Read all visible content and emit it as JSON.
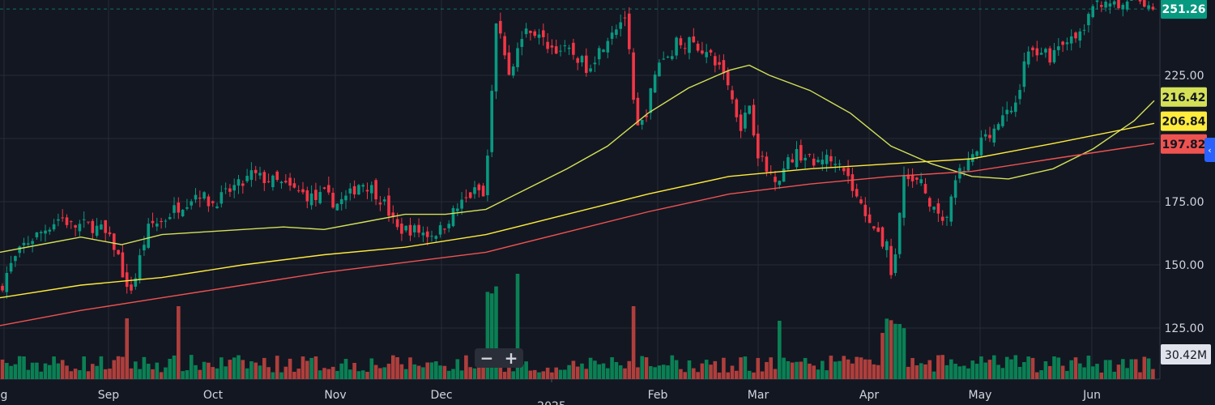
{
  "chart_data": {
    "type": "candlestick",
    "y_axis": {
      "ticks": [
        125,
        150,
        175,
        200,
        225
      ],
      "tick_labels": [
        "125.00",
        "150.00",
        "175.00",
        "",
        "225.00"
      ],
      "ylim": [
        114,
        254
      ]
    },
    "x_axis": {
      "labels": [
        "g",
        "Sep",
        "Oct",
        "Nov",
        "Dec",
        "Feb",
        "Mar",
        "Apr",
        "May",
        "Jun"
      ],
      "partial_label": "2025"
    },
    "price_path": [
      [
        0,
        140
      ],
      [
        10,
        148
      ],
      [
        30,
        158
      ],
      [
        55,
        164
      ],
      [
        75,
        169
      ],
      [
        90,
        165
      ],
      [
        105,
        166
      ],
      [
        125,
        164
      ],
      [
        140,
        158
      ],
      [
        150,
        150
      ],
      [
        155,
        139
      ],
      [
        165,
        142
      ],
      [
        175,
        156
      ],
      [
        185,
        166
      ],
      [
        200,
        167
      ],
      [
        215,
        172
      ],
      [
        230,
        175
      ],
      [
        245,
        179
      ],
      [
        260,
        174
      ],
      [
        275,
        177
      ],
      [
        290,
        181
      ],
      [
        300,
        182
      ],
      [
        310,
        186
      ],
      [
        325,
        184
      ],
      [
        340,
        183
      ],
      [
        360,
        180
      ],
      [
        375,
        178
      ],
      [
        390,
        176
      ],
      [
        400,
        178
      ],
      [
        415,
        174
      ],
      [
        430,
        177
      ],
      [
        445,
        183
      ],
      [
        460,
        180
      ],
      [
        475,
        174
      ],
      [
        490,
        164
      ],
      [
        510,
        164
      ],
      [
        530,
        162
      ],
      [
        545,
        164
      ],
      [
        560,
        171
      ],
      [
        575,
        176
      ],
      [
        590,
        180
      ],
      [
        598,
        176
      ],
      [
        603,
        198
      ],
      [
        608,
        220
      ],
      [
        613,
        248
      ],
      [
        620,
        240
      ],
      [
        630,
        222
      ],
      [
        640,
        238
      ],
      [
        655,
        244
      ],
      [
        665,
        240
      ],
      [
        680,
        236
      ],
      [
        695,
        235
      ],
      [
        710,
        233
      ],
      [
        725,
        228
      ],
      [
        740,
        235
      ],
      [
        755,
        243
      ],
      [
        765,
        246
      ],
      [
        773,
        249
      ],
      [
        778,
        228
      ],
      [
        785,
        203
      ],
      [
        795,
        207
      ],
      [
        805,
        220
      ],
      [
        815,
        232
      ],
      [
        825,
        232
      ],
      [
        835,
        238
      ],
      [
        850,
        238
      ],
      [
        865,
        236
      ],
      [
        880,
        231
      ],
      [
        895,
        226
      ],
      [
        905,
        214
      ],
      [
        915,
        205
      ],
      [
        925,
        214
      ],
      [
        935,
        195
      ],
      [
        945,
        188
      ],
      [
        955,
        185
      ],
      [
        965,
        186
      ],
      [
        975,
        192
      ],
      [
        985,
        194
      ],
      [
        995,
        193
      ],
      [
        1005,
        189
      ],
      [
        1015,
        193
      ],
      [
        1025,
        191
      ],
      [
        1035,
        193
      ],
      [
        1045,
        186
      ],
      [
        1055,
        178
      ],
      [
        1065,
        172
      ],
      [
        1075,
        168
      ],
      [
        1085,
        160
      ],
      [
        1095,
        157
      ],
      [
        1100,
        147
      ],
      [
        1105,
        152
      ],
      [
        1110,
        171
      ],
      [
        1115,
        186
      ],
      [
        1125,
        182
      ],
      [
        1135,
        183
      ],
      [
        1145,
        177
      ],
      [
        1155,
        170
      ],
      [
        1165,
        165
      ],
      [
        1175,
        178
      ],
      [
        1185,
        186
      ],
      [
        1195,
        190
      ],
      [
        1205,
        194
      ],
      [
        1215,
        202
      ],
      [
        1225,
        203
      ],
      [
        1235,
        207
      ],
      [
        1245,
        210
      ],
      [
        1255,
        214
      ],
      [
        1265,
        232
      ],
      [
        1275,
        234
      ],
      [
        1285,
        236
      ],
      [
        1295,
        232
      ],
      [
        1305,
        236
      ],
      [
        1315,
        240
      ],
      [
        1325,
        238
      ],
      [
        1335,
        242
      ],
      [
        1345,
        248
      ],
      [
        1355,
        254
      ],
      [
        1370,
        255
      ],
      [
        1380,
        250
      ],
      [
        1395,
        256
      ],
      [
        1410,
        254
      ],
      [
        1425,
        252
      ]
    ],
    "series": [
      {
        "name": "",
        "color": "#d4e157",
        "last": 216.42,
        "label": "216.42",
        "path": [
          [
            0,
            155
          ],
          [
            50,
            158
          ],
          [
            100,
            161
          ],
          [
            150,
            158
          ],
          [
            200,
            162
          ],
          [
            250,
            163
          ],
          [
            300,
            164
          ],
          [
            350,
            165
          ],
          [
            400,
            164
          ],
          [
            450,
            167
          ],
          [
            500,
            170
          ],
          [
            550,
            170
          ],
          [
            600,
            172
          ],
          [
            650,
            180
          ],
          [
            700,
            188
          ],
          [
            750,
            197
          ],
          [
            800,
            210
          ],
          [
            850,
            220
          ],
          [
            900,
            227
          ],
          [
            925,
            229
          ],
          [
            950,
            225
          ],
          [
            1000,
            219
          ],
          [
            1050,
            210
          ],
          [
            1100,
            197
          ],
          [
            1150,
            190
          ],
          [
            1200,
            185
          ],
          [
            1245,
            184
          ],
          [
            1300,
            188
          ],
          [
            1350,
            196
          ],
          [
            1400,
            207
          ],
          [
            1425,
            215
          ]
        ]
      },
      {
        "name": "",
        "color": "#ffeb3b",
        "last": 206.84,
        "label": "206.84",
        "path": [
          [
            0,
            137
          ],
          [
            100,
            142
          ],
          [
            200,
            145
          ],
          [
            300,
            150
          ],
          [
            400,
            154
          ],
          [
            500,
            157
          ],
          [
            600,
            162
          ],
          [
            700,
            170
          ],
          [
            800,
            178
          ],
          [
            900,
            185
          ],
          [
            1000,
            188
          ],
          [
            1100,
            190
          ],
          [
            1200,
            192
          ],
          [
            1300,
            198
          ],
          [
            1425,
            206
          ]
        ]
      },
      {
        "name": "",
        "color": "#ef5350",
        "last": 197.82,
        "label": "197.82",
        "path": [
          [
            0,
            126
          ],
          [
            100,
            132
          ],
          [
            200,
            137
          ],
          [
            300,
            142
          ],
          [
            400,
            147
          ],
          [
            500,
            151
          ],
          [
            600,
            155
          ],
          [
            700,
            163
          ],
          [
            800,
            171
          ],
          [
            900,
            178
          ],
          [
            1000,
            182
          ],
          [
            1100,
            185
          ],
          [
            1200,
            187
          ],
          [
            1300,
            192
          ],
          [
            1425,
            198
          ]
        ]
      }
    ],
    "last_price": 251.26,
    "last_price_label": "251.26",
    "volume_label": "30.42M",
    "up_color": "#089981",
    "down_color": "#f23645"
  },
  "controls": {
    "zoom_out": "−",
    "zoom_in": "+",
    "collapse": "‹"
  }
}
